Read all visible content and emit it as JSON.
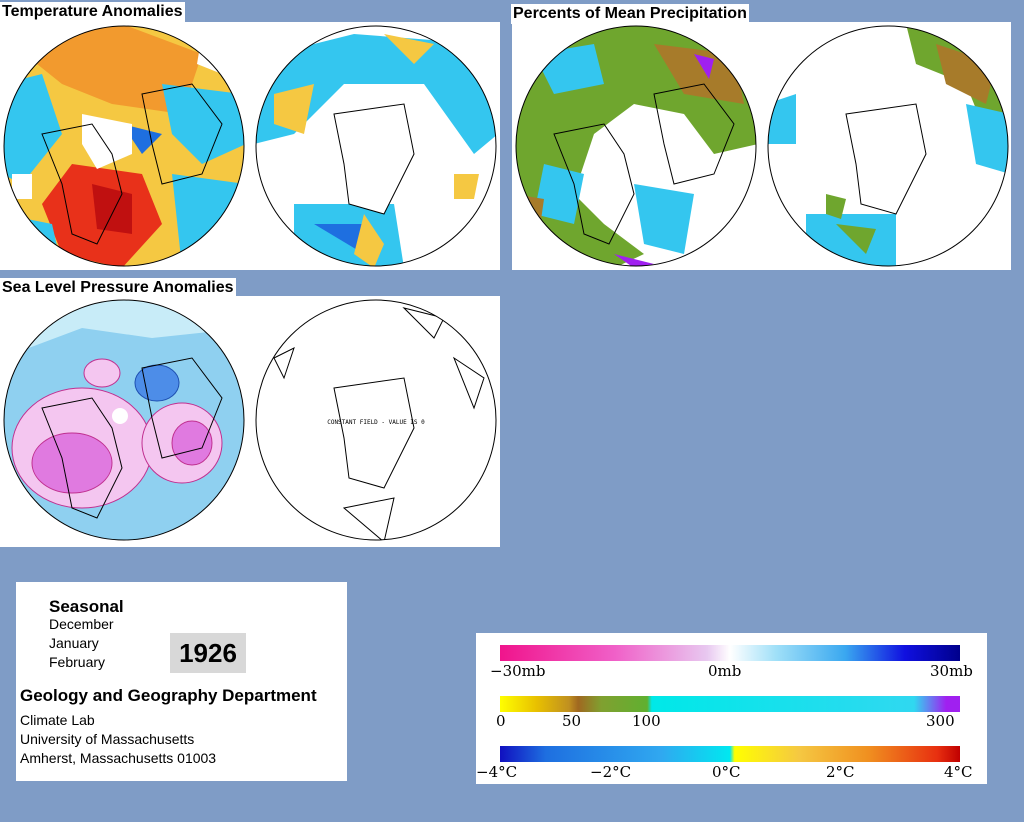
{
  "panels": {
    "temperature": {
      "title": "Temperature Anomalies"
    },
    "precipitation": {
      "title": "Percents of Mean Precipitation"
    },
    "pressure": {
      "title": "Sea Level Pressure Anomalies",
      "south_note": "CONSTANT FIELD - VALUE IS 0"
    }
  },
  "info": {
    "season": "Seasonal",
    "months": [
      "December",
      "January",
      "February"
    ],
    "year": "1926",
    "department": "Geology and Geography Department",
    "address": [
      "Climate Lab",
      "University of Massachusetts",
      "Amherst, Massachusetts 01003"
    ]
  },
  "legend": {
    "pressure": {
      "labels": [
        "−30mb",
        "0mb",
        "30mb"
      ]
    },
    "precip": {
      "labels": [
        "0",
        "50",
        "100",
        "300"
      ]
    },
    "temp": {
      "labels": [
        "−4°C",
        "−2°C",
        "0°C",
        "2°C",
        "4°C"
      ]
    }
  },
  "colors": {
    "background": "#7f9cc6",
    "warm": "#f5a623",
    "hot": "#e8311a",
    "cool": "#34c6ef",
    "cold": "#1e6fe0",
    "pressure_low": "#8fd0f0",
    "pressure_high": "#e07ae0",
    "precip_green": "#6fa62e",
    "precip_brown": "#a77b2a"
  }
}
